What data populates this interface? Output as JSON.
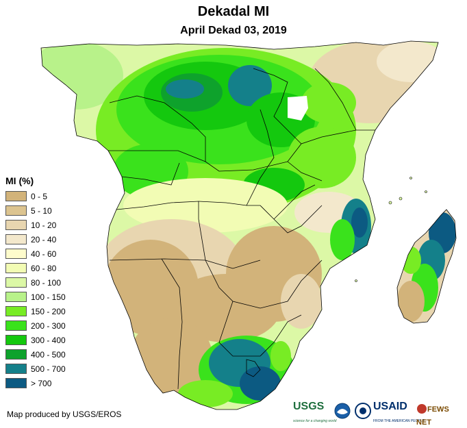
{
  "title": "Dekadal MI",
  "subtitle": "April Dekad 03, 2019",
  "legend": {
    "title": "MI (%)",
    "items": [
      {
        "label": "0 - 5",
        "color": "#d2b37a"
      },
      {
        "label": "5 - 10",
        "color": "#dcc490"
      },
      {
        "label": "10 - 20",
        "color": "#e8d6b0"
      },
      {
        "label": "20 - 40",
        "color": "#f3e8cc"
      },
      {
        "label": "40 - 60",
        "color": "#fefccc"
      },
      {
        "label": "60 - 80",
        "color": "#f2fcb4"
      },
      {
        "label": "80 - 100",
        "color": "#dcf8a6"
      },
      {
        "label": "100 - 150",
        "color": "#b8f28a"
      },
      {
        "label": "150 - 200",
        "color": "#78ec24"
      },
      {
        "label": "200 - 300",
        "color": "#3ae21c"
      },
      {
        "label": "300 - 400",
        "color": "#14c80e"
      },
      {
        "label": "400 - 500",
        "color": "#0ea22c"
      },
      {
        "label": "500 - 700",
        "color": "#14808a"
      },
      {
        "label": "> 700",
        "color": "#0c5a82"
      }
    ]
  },
  "credit": "Map produced by USGS/EROS",
  "logos": {
    "usgs": "USGS",
    "usgs_tagline": "science for a changing world",
    "usaid": "USAID",
    "usaid_tagline": "FROM THE AMERICAN PEOPLE",
    "fewsnet": "FEWS NET"
  }
}
